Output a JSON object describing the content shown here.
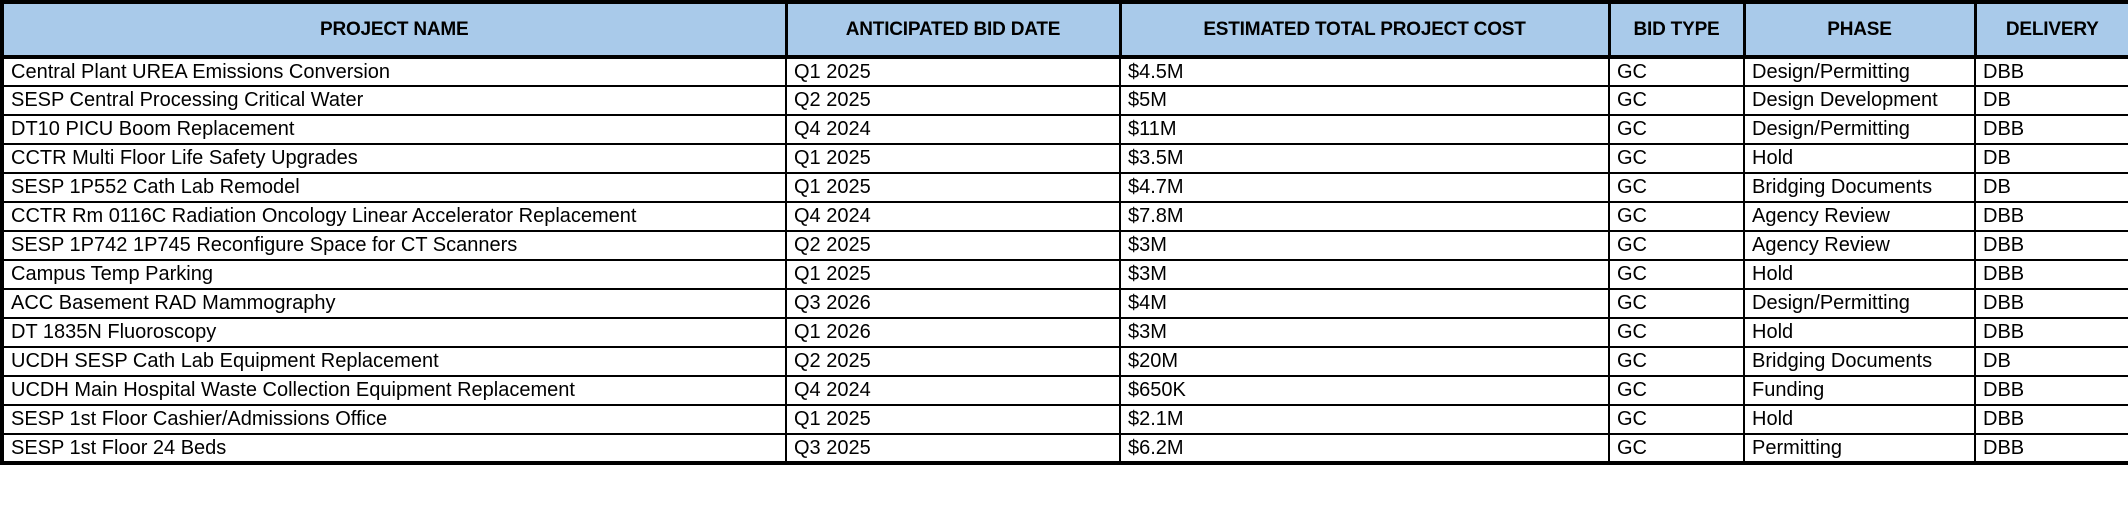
{
  "table": {
    "columns": [
      {
        "key": "project_name",
        "label": "PROJECT NAME"
      },
      {
        "key": "bid_date",
        "label": "ANTICIPATED BID DATE"
      },
      {
        "key": "project_cost",
        "label": "ESTIMATED TOTAL PROJECT COST"
      },
      {
        "key": "bid_type",
        "label": "BID TYPE"
      },
      {
        "key": "phase",
        "label": "PHASE"
      },
      {
        "key": "delivery",
        "label": "DELIVERY"
      }
    ],
    "rows": [
      {
        "project_name": "Central Plant UREA Emissions Conversion",
        "bid_date": "Q1 2025",
        "project_cost": "$4.5M",
        "bid_type": "GC",
        "phase": "Design/Permitting",
        "delivery": "DBB"
      },
      {
        "project_name": "SESP Central Processing Critical Water",
        "bid_date": "Q2 2025",
        "project_cost": "$5M",
        "bid_type": "GC",
        "phase": "Design Development",
        "delivery": "DB"
      },
      {
        "project_name": "DT10 PICU Boom Replacement",
        "bid_date": "Q4 2024",
        "project_cost": "$11M",
        "bid_type": "GC",
        "phase": "Design/Permitting",
        "delivery": "DBB"
      },
      {
        "project_name": "CCTR Multi Floor Life Safety Upgrades",
        "bid_date": "Q1 2025",
        "project_cost": "$3.5M",
        "bid_type": "GC",
        "phase": "Hold",
        "delivery": "DB"
      },
      {
        "project_name": "SESP 1P552 Cath Lab Remodel",
        "bid_date": "Q1 2025",
        "project_cost": "$4.7M",
        "bid_type": "GC",
        "phase": "Bridging Documents",
        "delivery": "DB"
      },
      {
        "project_name": "CCTR Rm 0116C Radiation Oncology Linear Accelerator Replacement",
        "bid_date": "Q4 2024",
        "project_cost": "$7.8M",
        "bid_type": "GC",
        "phase": "Agency Review",
        "delivery": "DBB"
      },
      {
        "project_name": "SESP 1P742 1P745 Reconfigure Space for CT Scanners",
        "bid_date": "Q2 2025",
        "project_cost": "$3M",
        "bid_type": "GC",
        "phase": "Agency Review",
        "delivery": "DBB"
      },
      {
        "project_name": "Campus Temp Parking",
        "bid_date": "Q1 2025",
        "project_cost": "$3M",
        "bid_type": "GC",
        "phase": "Hold",
        "delivery": "DBB"
      },
      {
        "project_name": "ACC Basement RAD Mammography",
        "bid_date": "Q3 2026",
        "project_cost": "$4M",
        "bid_type": "GC",
        "phase": "Design/Permitting",
        "delivery": "DBB"
      },
      {
        "project_name": "DT 1835N Fluoroscopy",
        "bid_date": "Q1 2026",
        "project_cost": "$3M",
        "bid_type": "GC",
        "phase": "Hold",
        "delivery": "DBB"
      },
      {
        "project_name": "UCDH SESP Cath Lab Equipment Replacement",
        "bid_date": "Q2 2025",
        "project_cost": "$20M",
        "bid_type": "GC",
        "phase": "Bridging Documents",
        "delivery": "DB"
      },
      {
        "project_name": "UCDH Main Hospital Waste Collection Equipment Replacement",
        "bid_date": "Q4 2024",
        "project_cost": "$650K",
        "bid_type": "GC",
        "phase": "Funding",
        "delivery": "DBB"
      },
      {
        "project_name": "SESP 1st Floor Cashier/Admissions Office",
        "bid_date": "Q1 2025",
        "project_cost": "$2.1M",
        "bid_type": "GC",
        "phase": "Hold",
        "delivery": "DBB"
      },
      {
        "project_name": "SESP 1st Floor 24 Beds",
        "bid_date": "Q3 2025",
        "project_cost": "$6.2M",
        "bid_type": "GC",
        "phase": "Permitting",
        "delivery": "DBB"
      }
    ]
  },
  "colors": {
    "header_bg": "#a9caea",
    "border": "#000000",
    "row_bg": "#ffffff",
    "text": "#000000"
  }
}
